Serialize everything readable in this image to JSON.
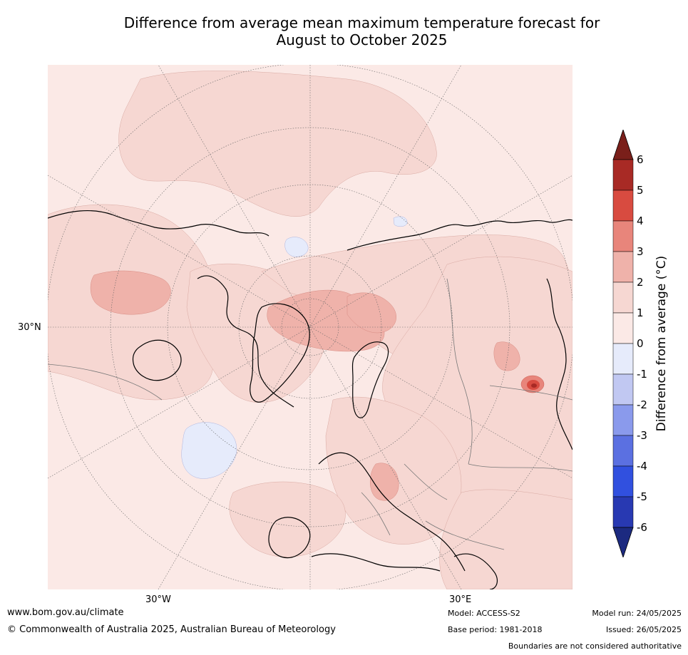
{
  "title": {
    "line1": "Difference from average mean maximum temperature forecast for",
    "line2": "August to October 2025"
  },
  "map": {
    "projection": "north-polar-stereographic",
    "lat_labels": [
      "30°N"
    ],
    "lon_labels": [
      "30°W",
      "30°E"
    ]
  },
  "colorbar": {
    "label": "Difference from average (°C)",
    "ticks": [
      "6",
      "5",
      "4",
      "3",
      "2",
      "1",
      "0",
      "-1",
      "-2",
      "-3",
      "-4",
      "-5",
      "-6"
    ],
    "colors": [
      "#7a1f1a",
      "#a82a25",
      "#d84b40",
      "#e8857b",
      "#efb2aa",
      "#f6d7d2",
      "#fbe9e6",
      "#e6ebfb",
      "#c1c8f2",
      "#8a9aec",
      "#5b70e1",
      "#3150df",
      "#2839b2",
      "#1c2a80"
    ]
  },
  "footer": {
    "website": "www.bom.gov.au/climate",
    "copyright": "© Commonwealth of Australia 2025, Australian Bureau of Meteorology",
    "model": "Model: ACCESS-S2",
    "base_period": "Base period: 1981-2018",
    "model_run": "Model run: 24/05/2025",
    "issued": "Issued: 26/05/2025",
    "disclaimer": "Boundaries are not considered authoritative"
  }
}
